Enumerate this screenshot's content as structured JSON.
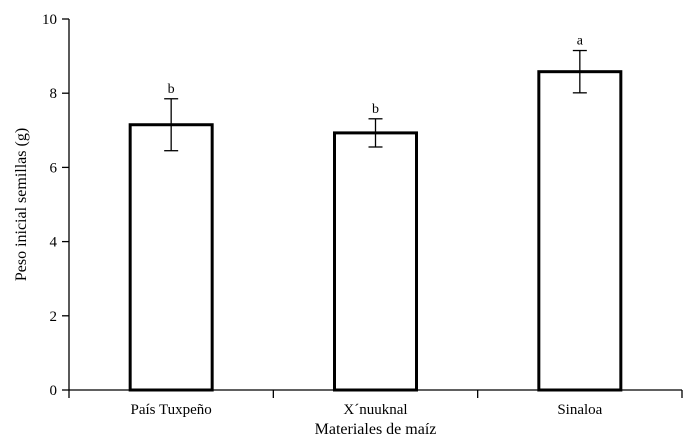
{
  "chart_data": {
    "type": "bar",
    "title": "",
    "xlabel": "Materiales de maíz",
    "ylabel": "Peso inicial semillas (g)",
    "ylim": [
      0,
      10
    ],
    "yticks": [
      0,
      2,
      4,
      6,
      8,
      10
    ],
    "grid": false,
    "legend": "none",
    "categories": [
      "País Tuxpeño",
      "X´nuuknal",
      "Sinaloa"
    ],
    "values": [
      7.15,
      6.93,
      8.58
    ],
    "errors": [
      0.7,
      0.38,
      0.57
    ],
    "significance_letters": [
      "b",
      "b",
      "a"
    ],
    "bar_fill": "#ffffff",
    "bar_stroke": "#000000"
  }
}
